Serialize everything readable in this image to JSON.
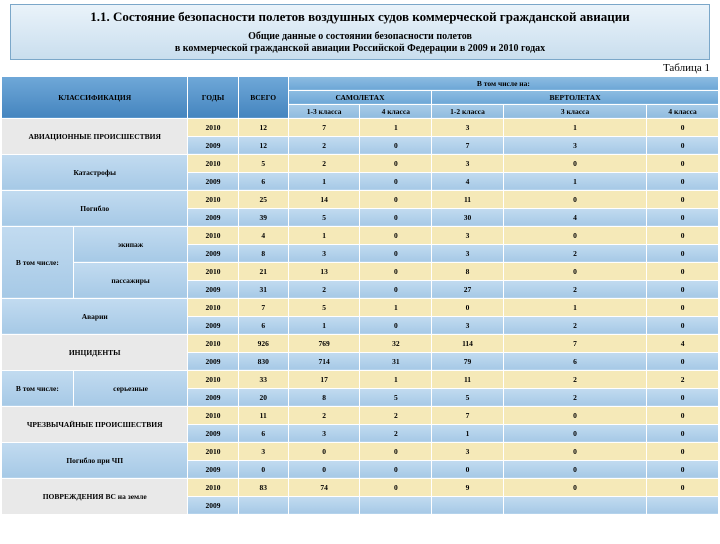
{
  "header": {
    "title": "1.1. Состояние безопасности полетов воздушных  судов коммерческой гражданской авиации",
    "subtitle_l1": "Общие данные о состоянии безопасности полетов",
    "subtitle_l2": "в коммерческой гражданской авиации Российской Федерации в 2009 и 2010 годах",
    "table_label": "Таблица 1"
  },
  "thead": {
    "classification": "КЛАССИФИКАЦИЯ",
    "years": "ГОДЫ",
    "total": "ВСЕГО",
    "including": "В том числе на:",
    "airplanes": "САМОЛЕТАХ",
    "helicopters": "ВЕРТОЛЕТАХ",
    "c1_3": "1-3 класса",
    "c4": "4 класса",
    "h1_2": "1-2 класса",
    "h3": "3 класса",
    "h4": "4 класса"
  },
  "rows": {
    "r0": {
      "label": "АВИАЦИОННЫЕ ПРОИСШЕСТВИЯ",
      "y": "2010",
      "v": [
        "12",
        "7",
        "1",
        "3",
        "1",
        "0"
      ]
    },
    "r1": {
      "y": "2009",
      "v": [
        "12",
        "2",
        "0",
        "7",
        "3",
        "0"
      ]
    },
    "r2": {
      "label": "Катастрофы",
      "y": "2010",
      "v": [
        "5",
        "2",
        "0",
        "3",
        "0",
        "0"
      ]
    },
    "r3": {
      "y": "2009",
      "v": [
        "6",
        "1",
        "0",
        "4",
        "1",
        "0"
      ]
    },
    "r4": {
      "label": "Погибло",
      "y": "2010",
      "v": [
        "25",
        "14",
        "0",
        "11",
        "0",
        "0"
      ]
    },
    "r5": {
      "y": "2009",
      "v": [
        "39",
        "5",
        "0",
        "30",
        "4",
        "0"
      ]
    },
    "r6": {
      "side": "В том числе:",
      "label": "экипаж",
      "y": "2010",
      "v": [
        "4",
        "1",
        "0",
        "3",
        "0",
        "0"
      ]
    },
    "r7": {
      "y": "2009",
      "v": [
        "8",
        "3",
        "0",
        "3",
        "2",
        "0"
      ]
    },
    "r8": {
      "label": "пассажиры",
      "y": "2010",
      "v": [
        "21",
        "13",
        "0",
        "8",
        "0",
        "0"
      ]
    },
    "r9": {
      "y": "2009",
      "v": [
        "31",
        "2",
        "0",
        "27",
        "2",
        "0"
      ]
    },
    "r10": {
      "label": "Аварии",
      "y": "2010",
      "v": [
        "7",
        "5",
        "1",
        "0",
        "1",
        "0"
      ]
    },
    "r11": {
      "y": "2009",
      "v": [
        "6",
        "1",
        "0",
        "3",
        "2",
        "0"
      ]
    },
    "r12": {
      "label": "ИНЦИДЕНТЫ",
      "y": "2010",
      "v": [
        "926",
        "769",
        "32",
        "114",
        "7",
        "4"
      ]
    },
    "r13": {
      "y": "2009",
      "v": [
        "830",
        "714",
        "31",
        "79",
        "6",
        "0"
      ]
    },
    "r14": {
      "side": "В том числе:",
      "label": "серьезные",
      "y": "2010",
      "v": [
        "33",
        "17",
        "1",
        "11",
        "2",
        "2"
      ]
    },
    "r15": {
      "y": "2009",
      "v": [
        "20",
        "8",
        "5",
        "5",
        "2",
        "0"
      ]
    },
    "r16": {
      "label": "ЧРЕЗВЫЧАЙНЫЕ ПРОИСШЕСТВИЯ",
      "y": "2010",
      "v": [
        "11",
        "2",
        "2",
        "7",
        "0",
        "0"
      ]
    },
    "r17": {
      "y": "2009",
      "v": [
        "6",
        "3",
        "2",
        "1",
        "0",
        "0"
      ]
    },
    "r18": {
      "label": "Погибло при ЧП",
      "y": "2010",
      "v": [
        "3",
        "0",
        "0",
        "3",
        "0",
        "0"
      ]
    },
    "r19": {
      "y": "2009",
      "v": [
        "0",
        "0",
        "0",
        "0",
        "0",
        "0"
      ]
    },
    "r20": {
      "label": "ПОВРЕЖДЕНИЯ ВС на земле",
      "y": "2010",
      "v": [
        "83",
        "74",
        "0",
        "9",
        "0",
        "0"
      ]
    },
    "r21": {
      "y": "2009",
      "v": [
        "",
        "",
        "",
        "",
        "",
        ""
      ]
    }
  }
}
